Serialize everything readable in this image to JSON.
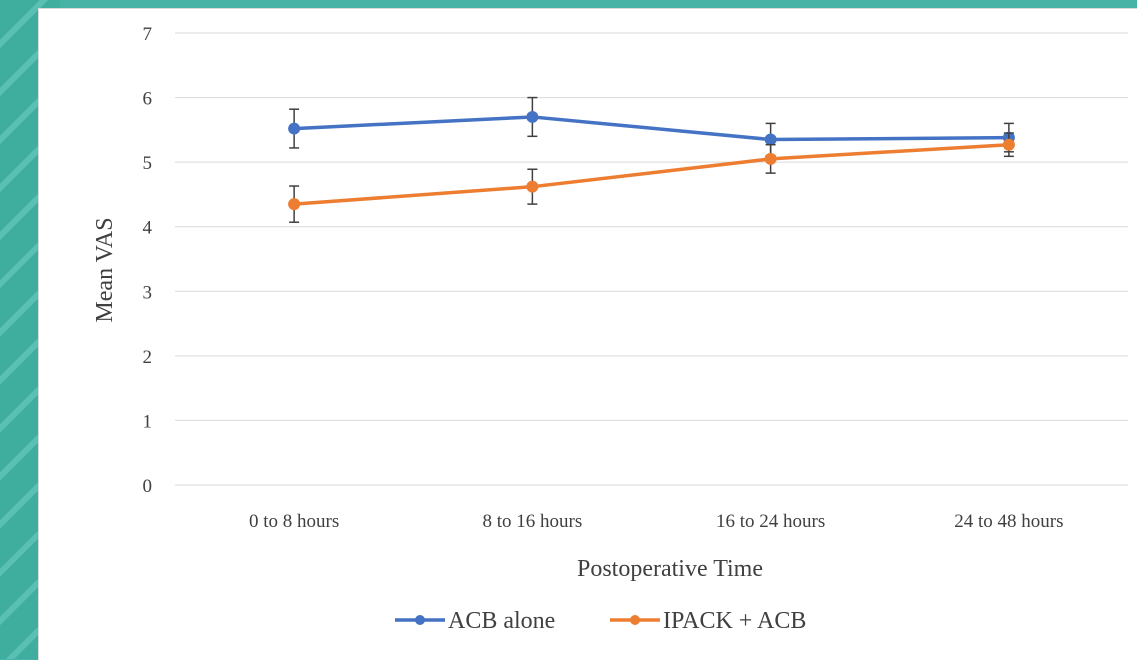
{
  "chart_data": {
    "type": "line",
    "title": "",
    "xlabel": "Postoperative Time",
    "ylabel": "Mean VAS",
    "ylim": [
      0,
      7
    ],
    "yticks": [
      "0",
      "1",
      "2",
      "3",
      "4",
      "5",
      "6",
      "7"
    ],
    "categories": [
      "0 to 8 hours",
      "8 to 16 hours",
      "16 to 24 hours",
      "24 to 48 hours"
    ],
    "grid": true,
    "legend_position": "bottom",
    "series": [
      {
        "name": "ACB alone",
        "color": "#4472c4",
        "values": [
          5.52,
          5.7,
          5.35,
          5.38
        ],
        "error": [
          0.3,
          0.3,
          0.25,
          0.22
        ]
      },
      {
        "name": "IPACK + ACB",
        "color": "#ed7d31",
        "values": [
          4.35,
          4.62,
          5.05,
          5.27
        ],
        "error": [
          0.28,
          0.27,
          0.22,
          0.18
        ]
      }
    ]
  }
}
